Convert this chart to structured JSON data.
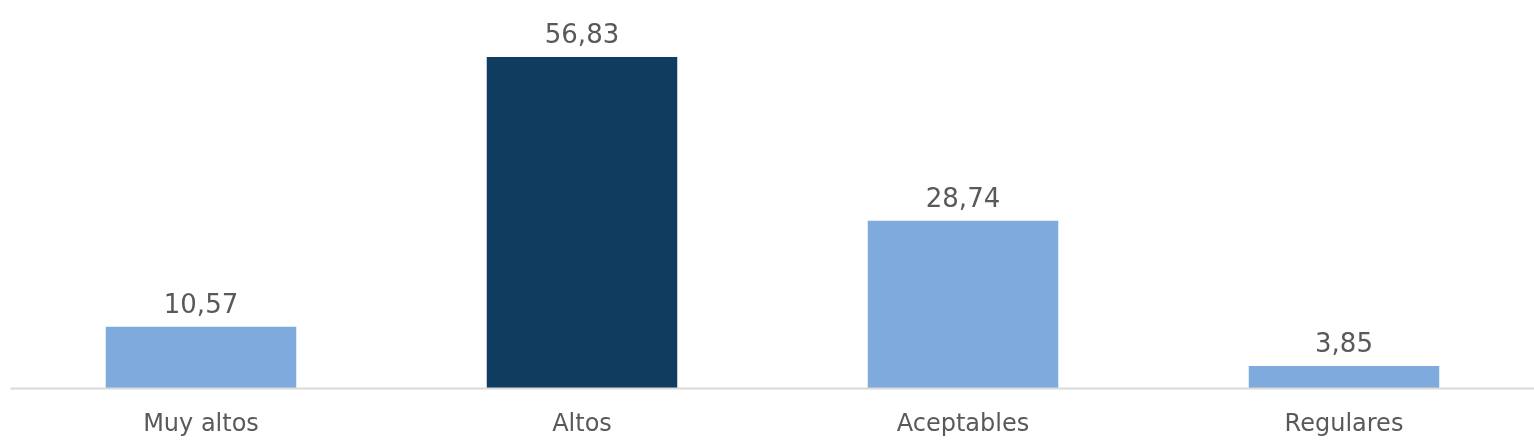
{
  "chart_data": {
    "type": "bar",
    "categories": [
      "Muy altos",
      "Altos",
      "Aceptables",
      "Regulares"
    ],
    "values": [
      10.57,
      56.83,
      28.74,
      3.85
    ],
    "colors": [
      "#7faadd",
      "#103c60",
      "#7faadd",
      "#7faadd"
    ],
    "value_labels": [
      "10,57",
      "56,83",
      "28,74",
      "3,85"
    ],
    "grid": false,
    "tick_labels": "x"
  }
}
